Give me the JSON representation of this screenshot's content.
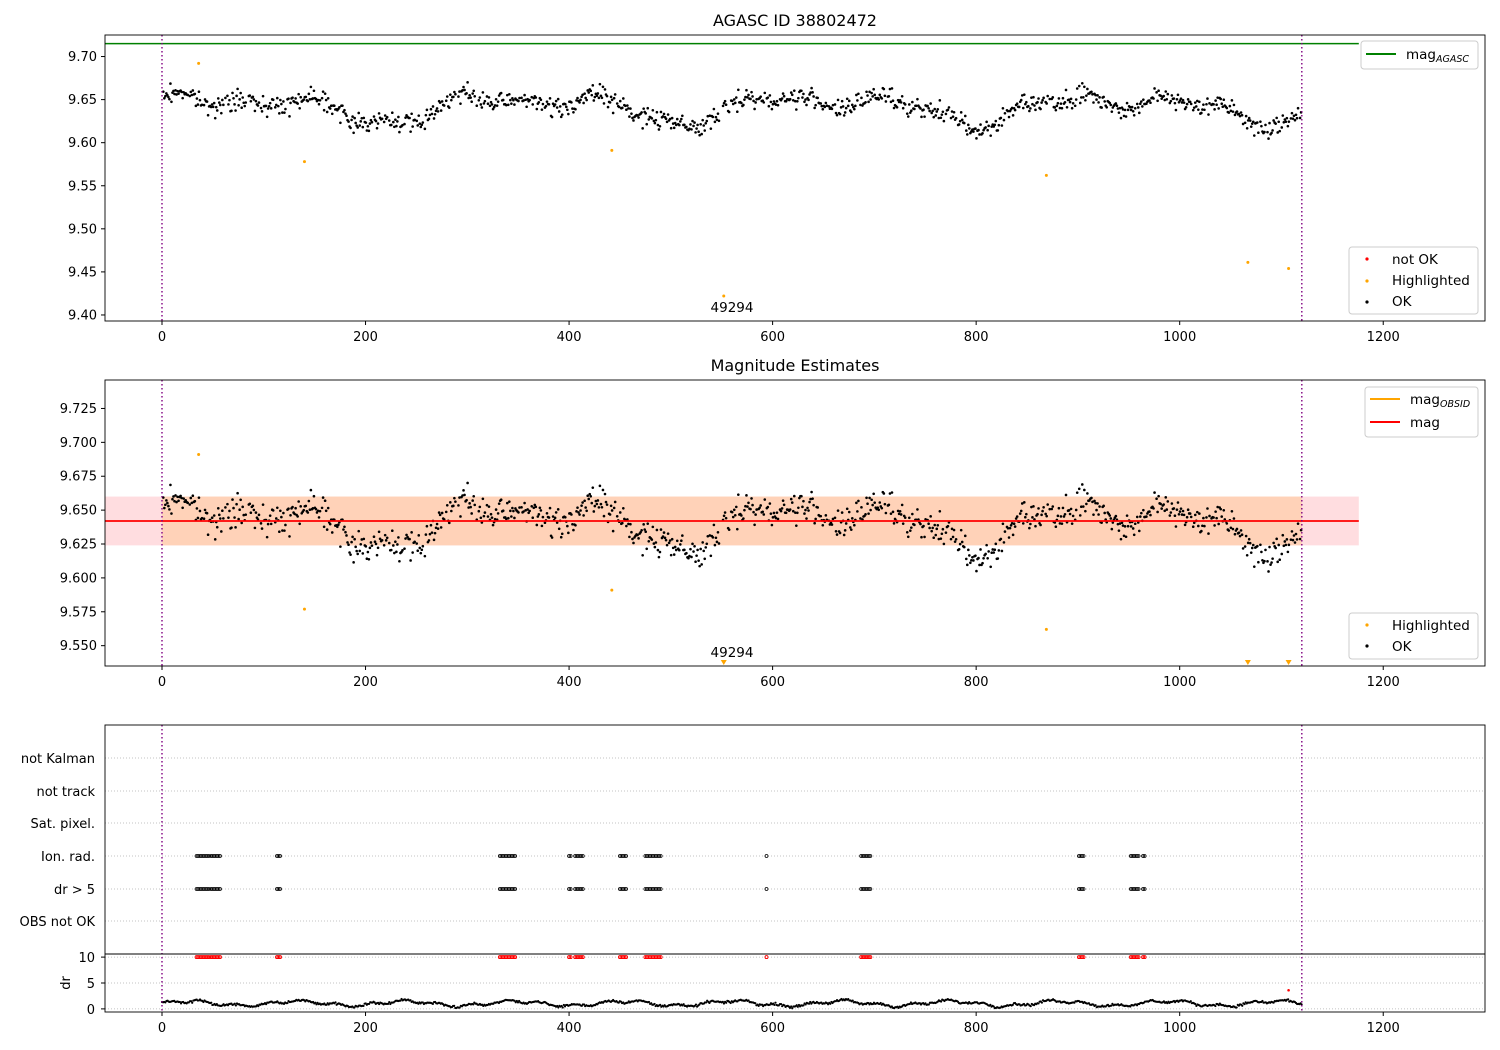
{
  "chart_data": [
    {
      "type": "scatter",
      "title": "AGASC ID 38802472",
      "xlim": [
        -56,
        1300
      ],
      "ylim": [
        9.393,
        9.725
      ],
      "xticks": [
        0,
        200,
        400,
        600,
        800,
        1000,
        1200
      ],
      "yticks": [
        9.4,
        9.45,
        9.5,
        9.55,
        9.6,
        9.65,
        9.7
      ],
      "ytick_labels": [
        "9.40",
        "9.45",
        "9.50",
        "9.55",
        "9.60",
        "9.65",
        "9.70"
      ],
      "vlines": [
        0,
        1120
      ],
      "hline": {
        "name": "mag_AGASC",
        "value": 9.715,
        "x_range": [
          -56,
          1176
        ],
        "color": "#008000"
      },
      "series": [
        {
          "name": "not OK",
          "color": "#ff0000",
          "points": []
        },
        {
          "name": "Highlighted",
          "color": "#ffa500",
          "points": [
            [
              36,
              9.692
            ],
            [
              140,
              9.578
            ],
            [
              442,
              9.591
            ],
            [
              869,
              9.562
            ],
            [
              1067,
              9.461
            ],
            [
              1107,
              9.454
            ],
            [
              552,
              9.422
            ]
          ]
        },
        {
          "name": "OK",
          "color": "#000000",
          "description": "~1100 points, approximately 9.60–9.69 around 9.64"
        }
      ],
      "annotations": [
        {
          "text": "49294",
          "x": 560,
          "y": 9.41
        }
      ],
      "legend": {
        "line_label": "mag",
        "line_sub": "AGASC",
        "scatter_labels": [
          "not OK",
          "Highlighted",
          "OK"
        ]
      }
    },
    {
      "type": "scatter",
      "title": "Magnitude Estimates",
      "xlim": [
        -56,
        1300
      ],
      "ylim": [
        9.535,
        9.746
      ],
      "xticks": [
        0,
        200,
        400,
        600,
        800,
        1000,
        1200
      ],
      "yticks": [
        9.55,
        9.575,
        9.6,
        9.625,
        9.65,
        9.675,
        9.7,
        9.725
      ],
      "ytick_labels": [
        "9.550",
        "9.575",
        "9.600",
        "9.625",
        "9.650",
        "9.675",
        "9.700",
        "9.725"
      ],
      "vlines": [
        0,
        1120
      ],
      "mag": 9.642,
      "bands": [
        [
          9.624,
          9.66
        ]
      ],
      "annotations": [
        {
          "text": "49294",
          "x": 560,
          "y": 9.541
        }
      ],
      "offscale_markers_x": [
        552,
        1067,
        1107
      ],
      "series": [
        {
          "name": "Highlighted",
          "color": "#ffa500",
          "points": [
            [
              36,
              9.691
            ],
            [
              140,
              9.577
            ],
            [
              442,
              9.591
            ],
            [
              869,
              9.562
            ]
          ]
        },
        {
          "name": "OK",
          "color": "#000000",
          "description": "same OK points as top panel"
        }
      ],
      "legend": {
        "line1_label": "mag",
        "line1_sub": "OBSID",
        "line2_label": "mag",
        "scatter_labels": [
          "Highlighted",
          "OK"
        ]
      }
    },
    {
      "type": "scatter",
      "title": "",
      "xlim": [
        -56,
        1300
      ],
      "xticks": [
        0,
        200,
        400,
        600,
        800,
        1000,
        1200
      ],
      "vlines": [
        0,
        1120
      ],
      "flag_rows": [
        "not Kalman",
        "not track",
        "Sat. pixel.",
        "Ion. rad.",
        "dr > 5",
        "OBS not OK"
      ],
      "flag_clusters": [
        [
          34,
          46
        ],
        [
          48,
          58
        ],
        [
          113,
          117
        ],
        [
          332,
          348
        ],
        [
          400,
          402
        ],
        [
          406,
          414
        ],
        [
          450,
          456
        ],
        [
          475,
          490
        ],
        [
          594,
          595
        ],
        [
          687,
          697
        ],
        [
          901,
          906
        ],
        [
          952,
          960
        ],
        [
          964,
          966
        ]
      ],
      "dr": {
        "ylabel": "dr",
        "ylim": [
          -0.6,
          10.6
        ],
        "yticks": [
          0,
          5,
          10
        ],
        "ytick_labels": [
          "0",
          "5",
          "10"
        ],
        "outliers": [
          [
            1107,
            3.6
          ]
        ]
      }
    }
  ]
}
